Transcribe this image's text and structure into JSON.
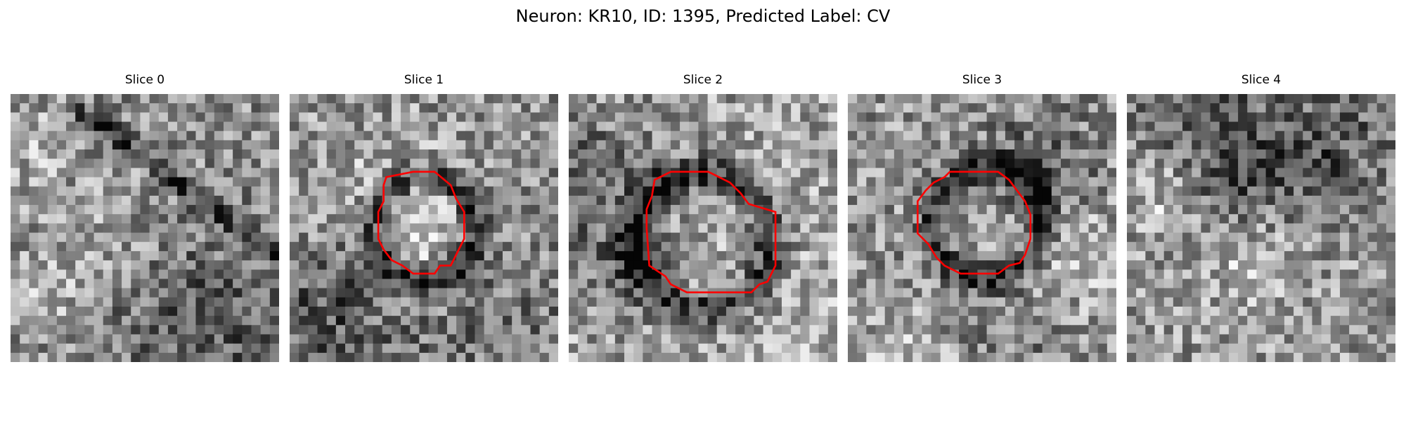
{
  "figure": {
    "title": "Neuron: KR10, ID: 1395, Predicted Label: CV"
  },
  "panels": [
    {
      "title": "Slice 0",
      "has_contour": false
    },
    {
      "title": "Slice 1",
      "has_contour": true
    },
    {
      "title": "Slice 2",
      "has_contour": true
    },
    {
      "title": "Slice 3",
      "has_contour": true
    },
    {
      "title": "Slice 4",
      "has_contour": false
    }
  ],
  "colors": {
    "contour": "#ff0000",
    "background": "#ffffff"
  },
  "image": {
    "grid": 29,
    "colormap": "gray"
  }
}
